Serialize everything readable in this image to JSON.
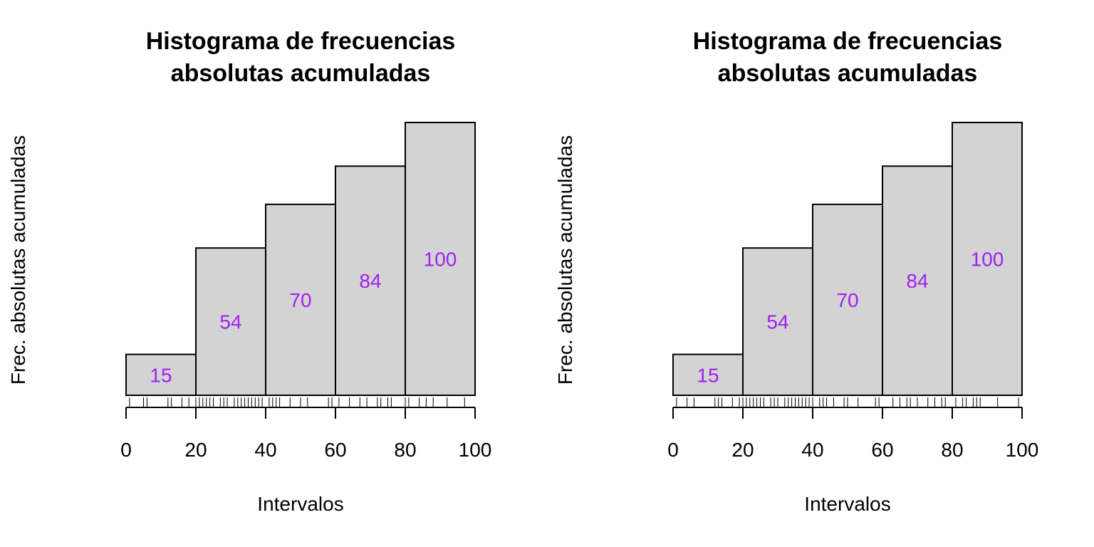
{
  "colors": {
    "bar_fill": "#d3d3d3",
    "bar_stroke": "#000000",
    "label_color": "#a020f0"
  },
  "chart_data": [
    {
      "type": "bar",
      "title": [
        "Histograma de frecuencias",
        "absolutas acumuladas"
      ],
      "xlabel": "Intervalos",
      "ylabel": "Frec. absolutas acumuladas",
      "breaks": [
        0,
        20,
        40,
        60,
        80,
        100
      ],
      "values": [
        15,
        54,
        70,
        84,
        100
      ],
      "xticks": [
        0,
        20,
        40,
        60,
        80,
        100
      ],
      "xlim": [
        0,
        100
      ],
      "ylim": [
        0,
        100
      ],
      "grid": false,
      "rug": [
        1,
        5,
        6,
        12,
        13,
        16,
        18,
        20,
        21,
        22,
        23,
        24,
        25,
        27,
        28,
        29,
        31,
        32,
        33,
        34,
        35,
        36,
        37,
        38,
        39,
        41,
        42,
        43,
        44,
        47,
        50,
        52,
        58,
        59,
        61,
        64,
        67,
        69,
        72,
        73,
        75,
        76,
        80,
        81,
        84,
        86,
        88,
        92,
        97
      ]
    },
    {
      "type": "bar",
      "title": [
        "Histograma de frecuencias",
        "absolutas acumuladas"
      ],
      "xlabel": "Intervalos",
      "ylabel": "Frec. absolutas acumuladas",
      "breaks": [
        0,
        20,
        40,
        60,
        80,
        100
      ],
      "values": [
        15,
        54,
        70,
        84,
        100
      ],
      "xticks": [
        0,
        20,
        40,
        60,
        80,
        100
      ],
      "xlim": [
        0,
        100
      ],
      "ylim": [
        0,
        100
      ],
      "grid": false,
      "rug": [
        1,
        4,
        6,
        12,
        13,
        14,
        17,
        19,
        20,
        21,
        22,
        23,
        24,
        25,
        26,
        28,
        29,
        30,
        32,
        33,
        34,
        35,
        36,
        37,
        38,
        39,
        40,
        42,
        43,
        44,
        46,
        49,
        50,
        53,
        58,
        59,
        63,
        65,
        67,
        68,
        70,
        73,
        75,
        77,
        78,
        81,
        83,
        84,
        86,
        87,
        88,
        93,
        99
      ]
    }
  ]
}
